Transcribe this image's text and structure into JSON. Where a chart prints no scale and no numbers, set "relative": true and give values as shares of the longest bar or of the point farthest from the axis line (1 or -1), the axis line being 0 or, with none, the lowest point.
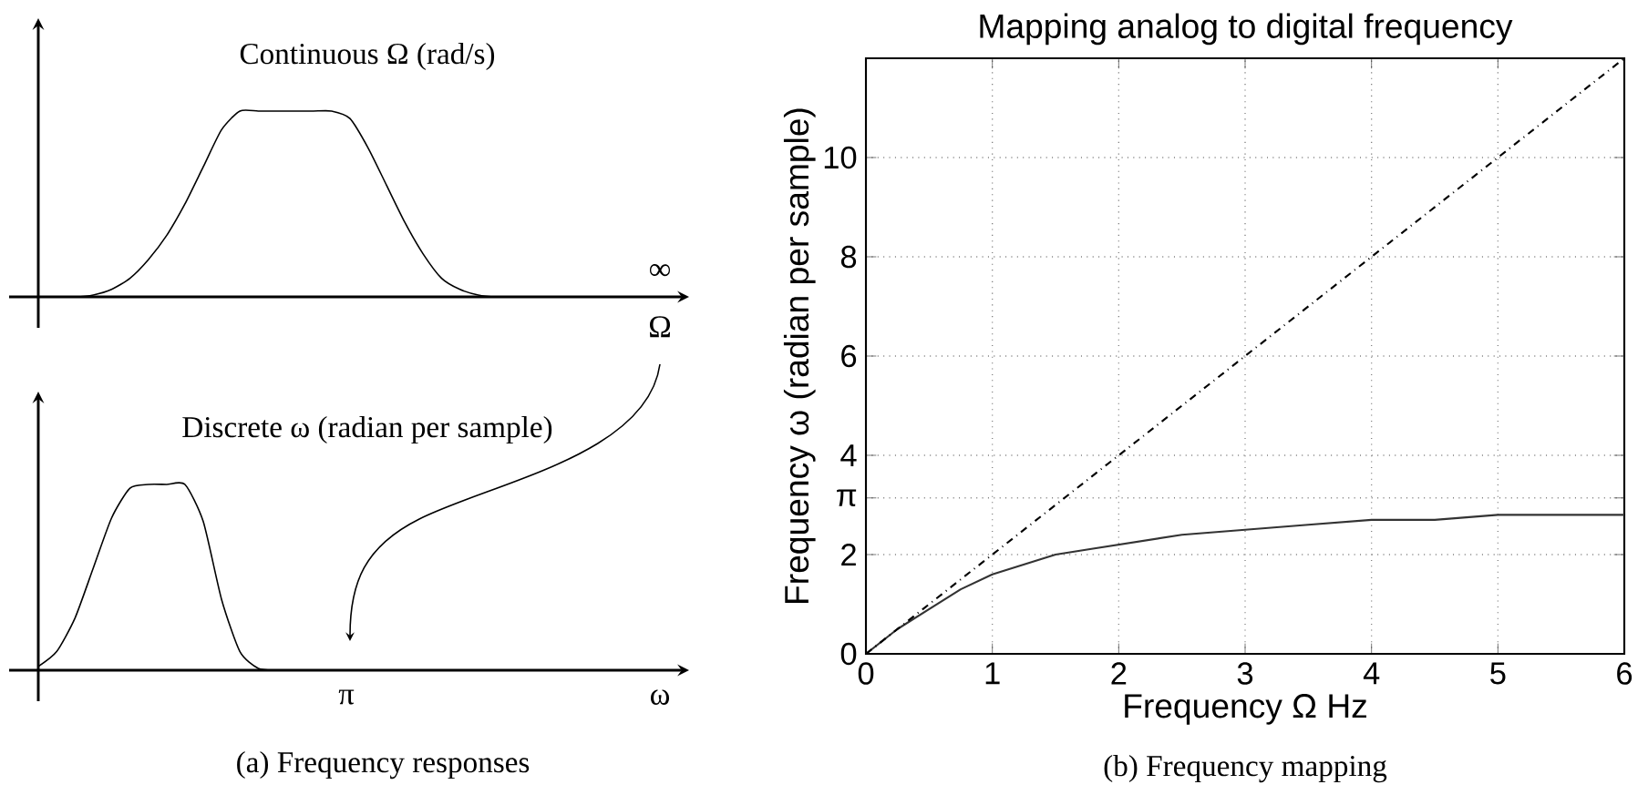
{
  "chart_data": [
    {
      "type": "line",
      "relative": true,
      "title": "Continuous Ω (rad/s)",
      "xlabel": "Ω",
      "annotations": [
        "∞",
        "(a) Frequency responses"
      ],
      "categories": [
        null,
        null,
        null,
        null,
        null,
        null,
        null,
        null,
        null,
        null,
        null,
        null,
        null,
        null,
        null,
        null,
        null,
        null,
        null,
        null,
        null,
        null,
        null,
        null,
        null,
        null,
        null,
        null,
        null,
        null,
        null,
        null,
        null,
        null,
        null,
        null
      ],
      "series": [
        {
          "color": "#000000",
          "values": [
            0,
            0,
            0,
            0.01,
            0.04,
            0.1,
            0.2,
            0.33,
            0.5,
            0.7,
            0.9,
            1,
            1,
            1,
            1,
            1,
            1,
            0.96,
            0.8,
            0.6,
            0.4,
            0.23,
            0.1,
            0.04,
            0.01,
            0,
            0,
            0,
            0,
            0,
            0,
            0,
            0,
            0,
            0,
            0
          ]
        }
      ]
    },
    {
      "type": "line",
      "relative": true,
      "title": "Discrete ω (radian per sample)",
      "xlabel": "ω",
      "annotations": [
        "π"
      ],
      "categories": [
        null,
        null,
        null,
        null,
        null,
        null,
        null,
        null,
        null,
        null,
        null,
        null,
        null,
        null,
        null,
        null,
        null,
        null,
        null,
        null,
        null,
        null,
        null,
        null,
        null,
        null,
        null,
        null,
        null,
        null,
        null,
        null,
        null,
        null,
        null,
        null
      ],
      "series": [
        {
          "color": "#000000",
          "values": [
            0.02,
            0.1,
            0.28,
            0.55,
            0.82,
            0.98,
            1,
            1,
            1,
            0.8,
            0.38,
            0.1,
            0.01,
            0,
            0,
            0,
            0,
            0,
            0,
            0,
            0,
            0,
            0,
            0,
            0,
            0,
            0,
            0,
            0,
            0,
            0,
            0,
            0,
            0,
            0,
            0
          ]
        }
      ]
    },
    {
      "type": "line",
      "title": "Mapping analog to digital frequency",
      "xlabel": "Frequency Ω Hz",
      "ylabel": "Frequency ω (radian per sample)",
      "annotations": [
        "(b) Frequency mapping"
      ],
      "xlim": [
        0,
        6
      ],
      "ylim": [
        0,
        12
      ],
      "xticks": [
        0,
        1,
        2,
        3,
        4,
        5,
        6
      ],
      "yticks": [
        0,
        2,
        {
          "value": 3.1416,
          "label": "π"
        },
        4,
        6,
        8,
        10
      ],
      "grid": true,
      "series": [
        {
          "color": "#333333",
          "line_style": "solid",
          "x": [
            0,
            0.25,
            0.5,
            0.75,
            1,
            1.25,
            1.5,
            1.75,
            2,
            2.5,
            3,
            3.5,
            4,
            4.5,
            5,
            5.5,
            6
          ],
          "values": [
            0,
            0.5,
            0.9,
            1.3,
            1.6,
            1.8,
            2.0,
            2.1,
            2.2,
            2.4,
            2.5,
            2.6,
            2.7,
            2.7,
            2.8,
            2.8,
            2.8
          ]
        },
        {
          "color": "#000000",
          "line_style": "dashdot",
          "x": [
            0,
            6
          ],
          "values": [
            0,
            12
          ]
        }
      ]
    }
  ]
}
